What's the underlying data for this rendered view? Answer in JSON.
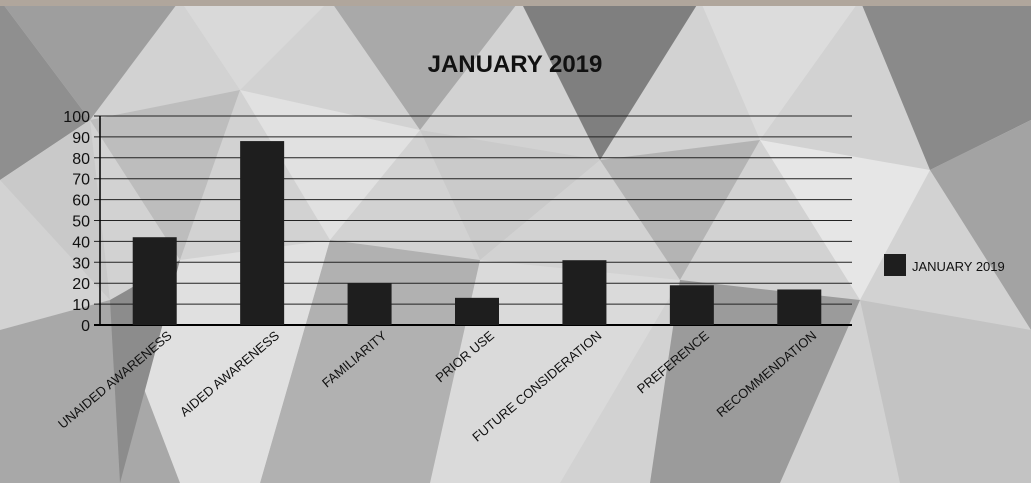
{
  "chart_data": {
    "type": "bar",
    "title": "JANUARY 2019",
    "categories": [
      "UNAIDED AWARENESS",
      "AIDED AWARENESS",
      "FAMILIARITY",
      "PRIOR USE",
      "FUTURE CONSIDERATION",
      "PREFERENCE",
      "RECOMMENDATION"
    ],
    "series": [
      {
        "name": "JANUARY 2019",
        "values": [
          42,
          88,
          20,
          13,
          31,
          19,
          17
        ]
      }
    ],
    "ylim": [
      0,
      100
    ],
    "yticks": [
      0,
      10,
      20,
      30,
      40,
      50,
      60,
      70,
      80,
      90,
      100
    ],
    "grid": true,
    "legend": "right",
    "bar_color": "#1e1e1e"
  }
}
